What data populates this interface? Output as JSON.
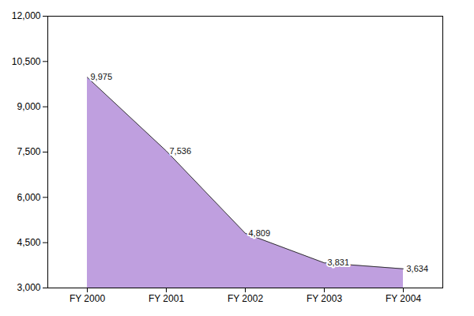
{
  "chart_data": {
    "type": "area",
    "categories": [
      "FY 2000",
      "FY 2001",
      "FY 2002",
      "FY 2003",
      "FY 2004"
    ],
    "values": [
      9975,
      7536,
      4809,
      3831,
      3634
    ],
    "value_labels": [
      "9,975",
      "7,536",
      "4,809",
      "3,831",
      "3,634"
    ],
    "data_labels": true,
    "color": "#bf9fdf",
    "ylim": [
      3000,
      12000
    ],
    "yticks": [
      {
        "value": 3000,
        "label": "3,000"
      },
      {
        "value": 4500,
        "label": "4,500"
      },
      {
        "value": 6000,
        "label": "6,000"
      },
      {
        "value": 7500,
        "label": "7,500"
      },
      {
        "value": 9000,
        "label": "9,000"
      },
      {
        "value": 10500,
        "label": "10,500"
      },
      {
        "value": 12000,
        "label": "12,000"
      }
    ],
    "grid": false
  }
}
